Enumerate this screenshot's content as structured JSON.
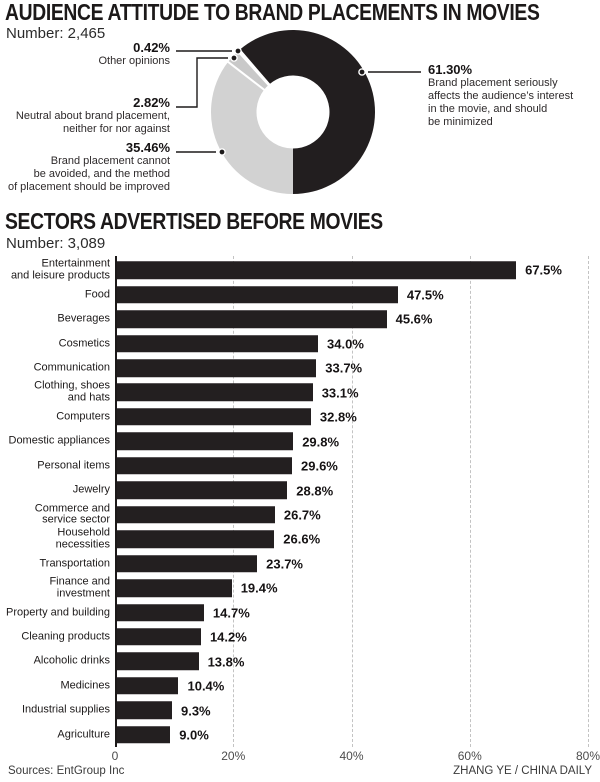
{
  "pie_section": {
    "title": "AUDIENCE ATTITUDE TO BRAND PLACEMENTS IN MOVIES",
    "subtitle": "Number: 2,465"
  },
  "bar_section": {
    "title": "SECTORS ADVERTISED BEFORE MOVIES",
    "subtitle": "Number: 3,089"
  },
  "footer": {
    "source": "Sources: EntGroup Inc",
    "credit": "ZHANG YE / CHINA DAILY"
  },
  "colors": {
    "ink": "#221e1f",
    "slice_dark": "#221e1f",
    "slice_gray": "#d2d2d2",
    "slice_gray_mid": "#c9c9c9",
    "slice_gray_light": "#e0e0e0",
    "gridline": "#c3c3c3"
  },
  "chart_data": [
    {
      "type": "pie",
      "donut": true,
      "title": "AUDIENCE ATTITUDE TO BRAND PLACEMENTS IN MOVIES",
      "subtitle": "Number: 2,465",
      "slices": [
        {
          "pct_label": "61.30%",
          "value": 61.3,
          "color": "#221e1f",
          "description": "Brand placement seriously\naffects the audience’s interest\nin the movie, and should\nbe minimized"
        },
        {
          "pct_label": "35.46%",
          "value": 35.46,
          "color": "#d2d2d2",
          "description": "Brand placement cannot\nbe avoided, and the method\nof placement should be improved"
        },
        {
          "pct_label": "2.82%",
          "value": 2.82,
          "color": "#c9c9c9",
          "description": "Neutral about brand placement,\nneither for nor against"
        },
        {
          "pct_label": "0.42%",
          "value": 0.42,
          "color": "#e0e0e0",
          "description": "Other opinions"
        }
      ]
    },
    {
      "type": "bar",
      "orientation": "horizontal",
      "title": "SECTORS ADVERTISED BEFORE MOVIES",
      "subtitle": "Number: 3,089",
      "xlim": [
        0,
        80
      ],
      "x_ticks": [
        "0",
        "20%",
        "40%",
        "60%",
        "80%"
      ],
      "grid": true,
      "bar_color": "#231f20",
      "categories": [
        "Entertainment\nand leisure products",
        "Food",
        "Beverages",
        "Cosmetics",
        "Communication",
        "Clothing, shoes\nand hats",
        "Computers",
        "Domestic appliances",
        "Personal items",
        "Jewelry",
        "Commerce and\nservice sector",
        "Household\nnecessities",
        "Transportation",
        "Finance and\ninvestment",
        "Property and building",
        "Cleaning products",
        "Alcoholic drinks",
        "Medicines",
        "Industrial supplies",
        "Agriculture"
      ],
      "values": [
        67.5,
        47.5,
        45.6,
        34.0,
        33.7,
        33.1,
        32.8,
        29.8,
        29.6,
        28.8,
        26.7,
        26.6,
        23.7,
        19.4,
        14.7,
        14.2,
        13.8,
        10.4,
        9.3,
        9.0
      ],
      "value_labels": [
        "67.5%",
        "47.5%",
        "45.6%",
        "34.0%",
        "33.7%",
        "33.1%",
        "32.8%",
        "29.8%",
        "29.6%",
        "28.8%",
        "26.7%",
        "26.6%",
        "23.7%",
        "19.4%",
        "14.7%",
        "14.2%",
        "13.8%",
        "10.4%",
        "9.3%",
        "9.0%"
      ]
    }
  ]
}
